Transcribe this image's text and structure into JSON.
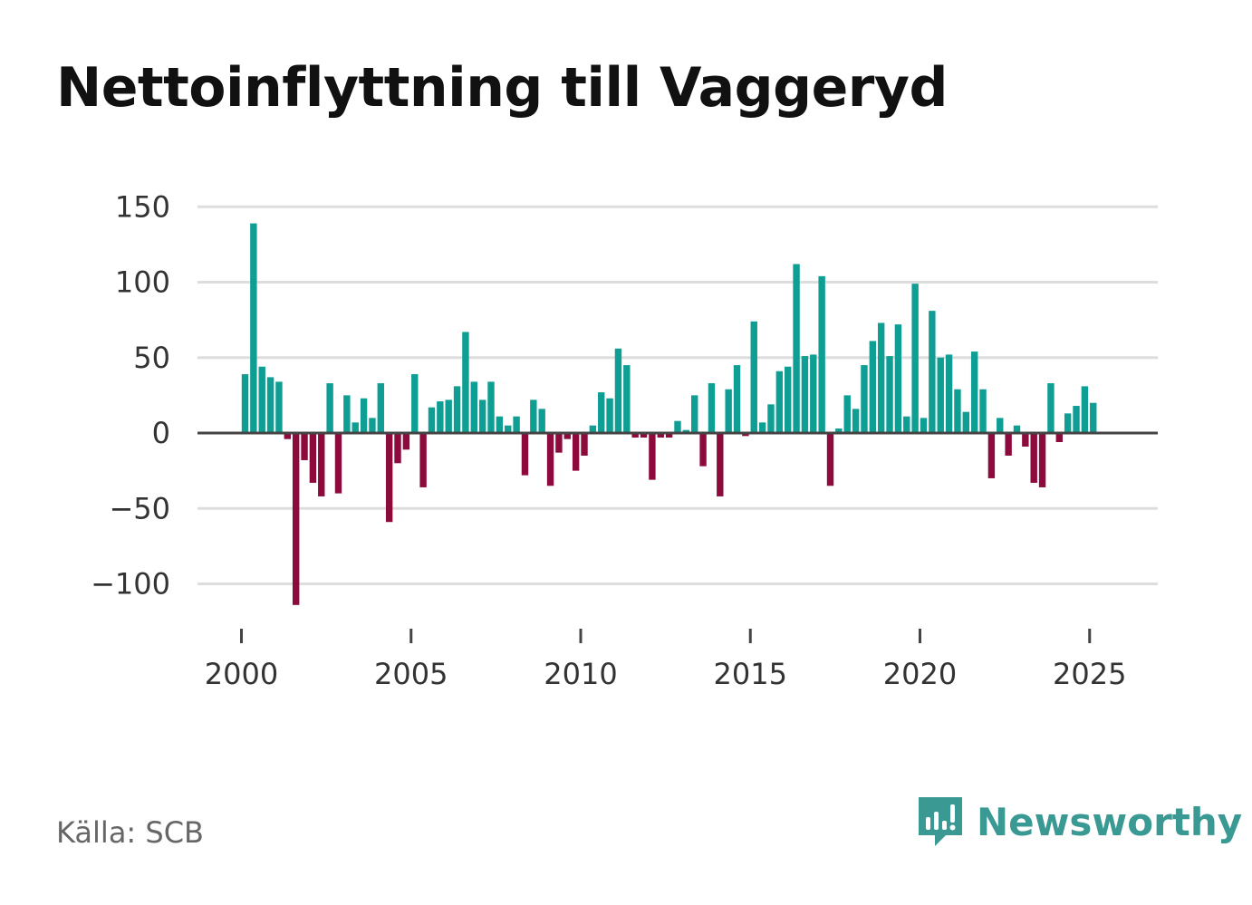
{
  "title": "Nettoinflyttning till Vaggeryd",
  "source": "Källa: SCB",
  "brand": {
    "name": "Newsworthy",
    "icon": "newsworthy-logo-icon",
    "color": "#3a9a93"
  },
  "colors": {
    "positive": "#0e9e93",
    "negative": "#8c0a3c",
    "grid": "#dddddd",
    "zero": "#444444",
    "text": "#333333"
  },
  "chart_data": {
    "type": "bar",
    "title": "Nettoinflyttning till Vaggeryd",
    "xlabel": "",
    "ylabel": "",
    "ylim": [
      -120,
      160
    ],
    "yticks": [
      150,
      100,
      50,
      0,
      -50,
      -100
    ],
    "ytick_labels": [
      "150",
      "100",
      "50",
      "0",
      "−50",
      "−100"
    ],
    "xticks": [
      2000,
      2005,
      2010,
      2015,
      2020,
      2025
    ],
    "xtick_labels": [
      "2000",
      "2005",
      "2010",
      "2015",
      "2020",
      "2025"
    ],
    "x_start": 2000.0,
    "x_step": 0.25,
    "grid": true,
    "values": [
      39,
      139,
      44,
      37,
      34,
      -4,
      -114,
      -18,
      -33,
      -42,
      33,
      -40,
      25,
      7,
      23,
      10,
      33,
      -59,
      -20,
      -11,
      39,
      -36,
      17,
      21,
      22,
      31,
      67,
      34,
      22,
      34,
      11,
      5,
      11,
      -28,
      22,
      16,
      -35,
      -13,
      -4,
      -25,
      -15,
      5,
      27,
      23,
      56,
      45,
      -3,
      -3,
      -31,
      -3,
      -3,
      8,
      2,
      25,
      -22,
      33,
      -42,
      29,
      45,
      -2,
      74,
      7,
      19,
      41,
      44,
      112,
      51,
      52,
      104,
      -35,
      3,
      25,
      16,
      45,
      61,
      73,
      51,
      72,
      11,
      99,
      10,
      81,
      50,
      52,
      29,
      14,
      54,
      29,
      -30,
      10,
      -15,
      5,
      -9,
      -33,
      -36,
      33,
      -6,
      13,
      18,
      31,
      20
    ]
  }
}
